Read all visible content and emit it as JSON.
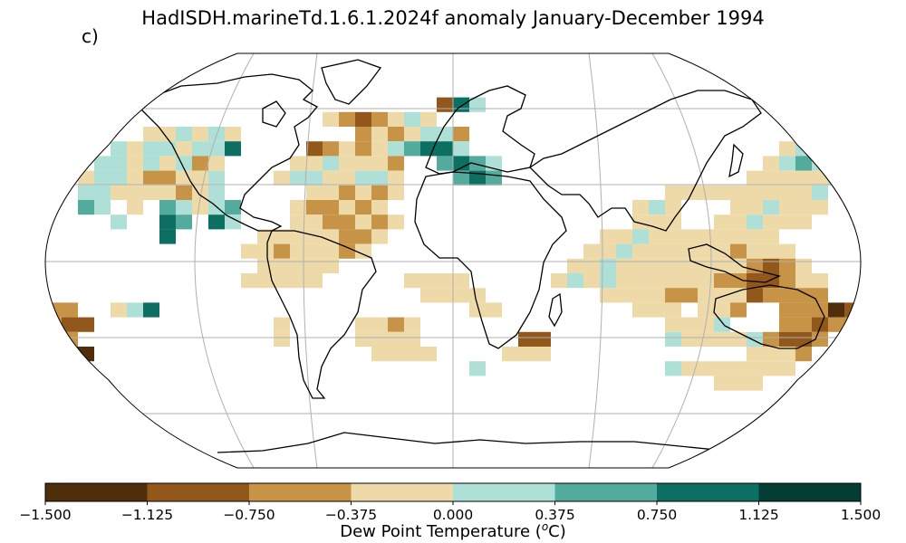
{
  "title": "HadISDH.marineTd.1.6.1.2024f anomaly January-December 1994",
  "panel_label": "c)",
  "colors": {
    "c1": "#4f2f0b",
    "c2": "#92571a",
    "c3": "#c79346",
    "c4": "#eedaa8",
    "c5": "#aee0d8",
    "c6": "#52ab9c",
    "c7": "#0c6f62",
    "c8": "#023e33",
    "land": "none",
    "coast": "#000000",
    "grid": "#b0b0b0"
  },
  "colorbar": {
    "ticks": [
      "−1.500",
      "−1.125",
      "−0.750",
      "−0.375",
      "0.000",
      "0.375",
      "0.750",
      "1.125",
      "1.500"
    ],
    "label_prefix": "Dew Point Temperature (",
    "label_sup": "o",
    "label_suffix": "C)"
  },
  "map": {
    "projection": "Robinson",
    "gridlines": true,
    "anomaly_classes": [
      {
        "class": "c4",
        "cells": 140
      },
      {
        "class": "c5",
        "cells": 80
      }
    ]
  }
}
